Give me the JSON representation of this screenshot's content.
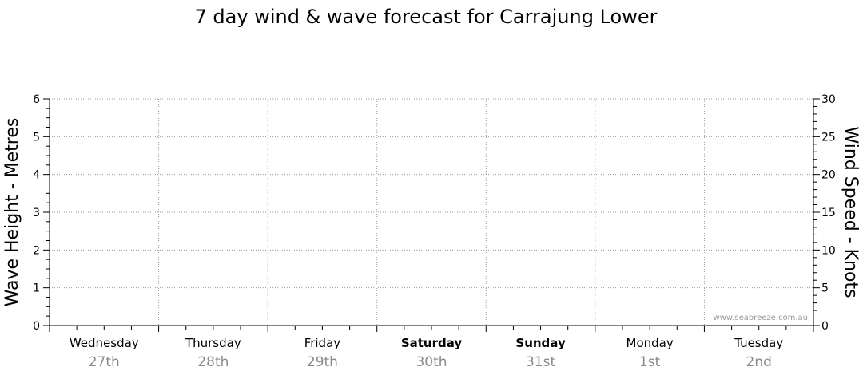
{
  "chart_data": {
    "type": "line",
    "title": "7 day wind & wave forecast for Carrajung Lower",
    "y_left": {
      "label": "Wave Height - Metres",
      "ticks": [
        "0",
        "1",
        "2",
        "3",
        "4",
        "5",
        "6"
      ],
      "range": [
        0,
        6
      ]
    },
    "y_right": {
      "label": "Wind Speed - Knots",
      "ticks": [
        "0",
        "5",
        "10",
        "15",
        "20",
        "25",
        "30"
      ],
      "range": [
        0,
        30
      ]
    },
    "days": [
      {
        "day": "Wednesday",
        "date": "27th",
        "weekend": false
      },
      {
        "day": "Thursday",
        "date": "28th",
        "weekend": false
      },
      {
        "day": "Friday",
        "date": "29th",
        "weekend": false
      },
      {
        "day": "Saturday",
        "date": "30th",
        "weekend": true
      },
      {
        "day": "Sunday",
        "date": "31st",
        "weekend": true
      },
      {
        "day": "Monday",
        "date": "1st",
        "weekend": false
      },
      {
        "day": "Tuesday",
        "date": "2nd",
        "weekend": false
      }
    ],
    "series": [],
    "grid": true,
    "watermark": "www.seabreeze.com.au"
  }
}
